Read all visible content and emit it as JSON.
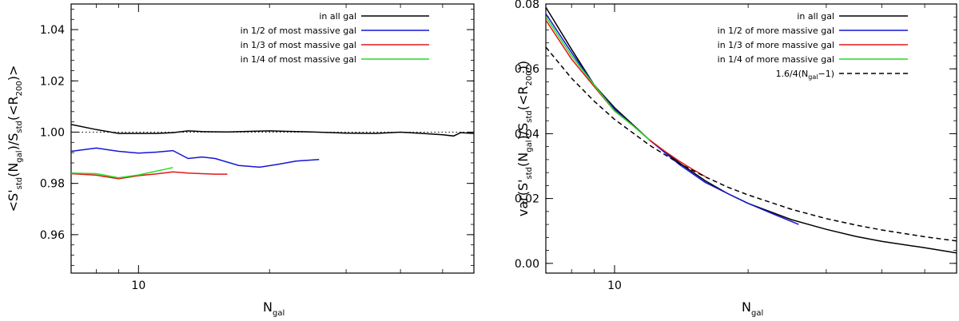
{
  "chart_data": [
    {
      "type": "line",
      "title": "",
      "xlabel": {
        "main": "N",
        "sub": "gal"
      },
      "ylabel": [
        "<S'",
        "std",
        "(N",
        "gal",
        ")/S",
        "std",
        "(<R",
        "200",
        ")>"
      ],
      "xscale": "log",
      "xlim": [
        7,
        59
      ],
      "ylim": [
        0.945,
        1.05
      ],
      "xticks": [
        {
          "value": 10,
          "label": "10"
        }
      ],
      "yticks": [
        {
          "value": 0.96,
          "label": "0.96"
        },
        {
          "value": 0.98,
          "label": "0.98"
        },
        {
          "value": 1.0,
          "label": "1.00"
        },
        {
          "value": 1.02,
          "label": "1.02"
        },
        {
          "value": 1.04,
          "label": "1.04"
        }
      ],
      "yformat": 2,
      "legend_position": "top-right",
      "reference_line": {
        "y": 1.0,
        "style": "dotted"
      },
      "series": [
        {
          "name": "in all gal",
          "color": "#000000",
          "dash": "",
          "x": [
            7,
            8,
            9,
            10,
            11,
            12,
            13,
            14,
            16,
            18,
            20,
            22,
            25,
            28,
            30,
            35,
            40,
            45,
            50,
            53,
            55,
            59
          ],
          "y": [
            1.003,
            1.001,
            0.9995,
            0.9995,
            0.9995,
            0.9998,
            1.0005,
            1.0002,
            1.0001,
            1.0003,
            1.0005,
            1.0003,
            1.0001,
            0.9998,
            0.9996,
            0.9995,
            1.0,
            0.9995,
            0.999,
            0.9985,
            0.9998,
            0.9995
          ]
        },
        {
          "name": "in 1/2 of most massive gal",
          "color": "#1515d6",
          "dash": "",
          "x": [
            7,
            8,
            9,
            10,
            11,
            12,
            13,
            14,
            15,
            17,
            19,
            21,
            23,
            26
          ],
          "y": [
            0.9925,
            0.9938,
            0.9925,
            0.9918,
            0.9922,
            0.9928,
            0.9897,
            0.9903,
            0.9897,
            0.987,
            0.9863,
            0.9875,
            0.9887,
            0.9893
          ]
        },
        {
          "name": "in 1/3 of most massive gal",
          "color": "#e01818",
          "dash": "",
          "x": [
            7,
            8,
            9,
            10,
            11,
            12,
            13,
            14,
            15,
            16
          ],
          "y": [
            0.9838,
            0.9832,
            0.9818,
            0.983,
            0.9837,
            0.9845,
            0.984,
            0.9838,
            0.9836,
            0.9836
          ]
        },
        {
          "name": "in 1/4 of most massive gal",
          "color": "#22dd22",
          "dash": "",
          "x": [
            7,
            8,
            9,
            10,
            11,
            12
          ],
          "y": [
            0.984,
            0.9838,
            0.9822,
            0.9833,
            0.9848,
            0.9862
          ]
        }
      ]
    },
    {
      "type": "line",
      "title": "",
      "xlabel": {
        "main": "N",
        "sub": "gal"
      },
      "ylabel": [
        "var(S'",
        "std",
        "(N",
        "gal",
        ")/S",
        "std",
        "(<R",
        "200",
        "))"
      ],
      "xscale": "log",
      "xlim": [
        7,
        59
      ],
      "ylim": [
        -0.003,
        0.08
      ],
      "xticks": [
        {
          "value": 10,
          "label": "10"
        }
      ],
      "yticks": [
        {
          "value": 0.0,
          "label": "0.00"
        },
        {
          "value": 0.02,
          "label": "0.02"
        },
        {
          "value": 0.04,
          "label": "0.04"
        },
        {
          "value": 0.06,
          "label": "0.06"
        },
        {
          "value": 0.08,
          "label": "0.08"
        }
      ],
      "yformat": 2,
      "legend_position": "top-right",
      "series": [
        {
          "name": "in all gal",
          "color": "#000000",
          "dash": "",
          "x": [
            7,
            8,
            9,
            10,
            12,
            14,
            16,
            18,
            20,
            25,
            30,
            35,
            40,
            50,
            59
          ],
          "y": [
            0.079,
            0.066,
            0.055,
            0.048,
            0.038,
            0.031,
            0.0255,
            0.0215,
            0.0185,
            0.0135,
            0.0105,
            0.0083,
            0.0068,
            0.0048,
            0.0032
          ]
        },
        {
          "name": "in 1/2 of more massive gal",
          "color": "#1515d6",
          "dash": "",
          "x": [
            7,
            8,
            9,
            10,
            12,
            14,
            16,
            18,
            20,
            23,
            26
          ],
          "y": [
            0.077,
            0.065,
            0.055,
            0.0475,
            0.038,
            0.0305,
            0.025,
            0.0215,
            0.0185,
            0.015,
            0.012
          ]
        },
        {
          "name": "in 1/3 of more massive gal",
          "color": "#e01818",
          "dash": "",
          "x": [
            7,
            8,
            9,
            10,
            11,
            12,
            13,
            14,
            15,
            16
          ],
          "y": [
            0.075,
            0.063,
            0.0545,
            0.047,
            0.0425,
            0.038,
            0.0345,
            0.0315,
            0.029,
            0.0268
          ]
        },
        {
          "name": "in 1/4 of more massive gal",
          "color": "#22dd22",
          "dash": "",
          "x": [
            7,
            8,
            9,
            10,
            11,
            12
          ],
          "y": [
            0.076,
            0.064,
            0.055,
            0.047,
            0.0425,
            0.038
          ]
        },
        {
          "name": "1.6/4(N_gal-1)",
          "label": [
            "1.6/4(N",
            "gal",
            "−1)"
          ],
          "color": "#000000",
          "dash": "6,4",
          "x": [
            7,
            8,
            9,
            10,
            12,
            14,
            16,
            18,
            20,
            25,
            30,
            35,
            40,
            50,
            59
          ],
          "y": [
            0.0667,
            0.0571,
            0.05,
            0.0444,
            0.0364,
            0.0308,
            0.0267,
            0.0235,
            0.0211,
            0.0167,
            0.0138,
            0.0118,
            0.0103,
            0.0082,
            0.0069
          ]
        }
      ]
    }
  ]
}
